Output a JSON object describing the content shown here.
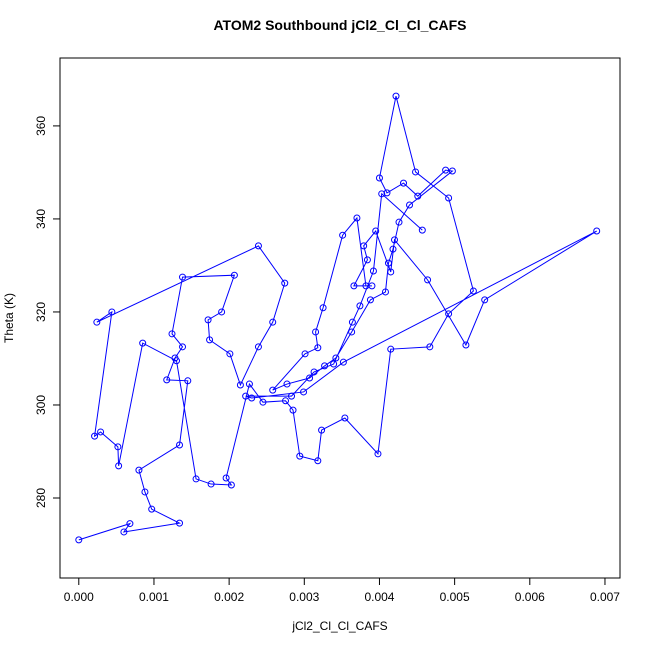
{
  "chart_data": {
    "type": "line",
    "title": "ATOM2 Southbound jCl2_Cl_Cl_CAFS",
    "x_label": "jCl2_Cl_Cl_CAFS",
    "y_label": "Theta (K)",
    "series": [
      {
        "color": "#0000ff",
        "x": [
          0,
          0.00068,
          0.0006,
          0.00134,
          0.00097,
          0.00088,
          0.0008,
          0.00134,
          0.00145,
          0.00117,
          0.00128,
          0.00138,
          0.00124,
          0.00138,
          0.00207,
          0.0019,
          0.00172,
          0.00174,
          0.00201,
          0.00215,
          0.00239,
          0.00258,
          0.00274,
          0.00239,
          0.00024,
          0.00044,
          0.00021,
          0.00029,
          0.00052,
          0.00053,
          0.00085,
          0.0013,
          0.00156,
          0.00176,
          0.00203,
          0.00196,
          0.00227,
          0.00245,
          0.00275,
          0.00285,
          0.00294,
          0.00318,
          0.00323,
          0.00354,
          0.00398,
          0.00415,
          0.00467,
          0.00492,
          0.00525,
          0.00492,
          0.00448,
          0.00422,
          0.004,
          0.0041,
          0.00432,
          0.00451,
          0.00488,
          0.00497,
          0.0044,
          0.00426,
          0.00418,
          0.00412,
          0.00408,
          0.00388,
          0.00363,
          0.00342,
          0.00327,
          0.00307,
          0.00277,
          0.00258,
          0.00301,
          0.00318,
          0.00315,
          0.00325,
          0.00351,
          0.0037,
          0.00382,
          0.0039,
          0.00366,
          0.00384,
          0.00379,
          0.00395,
          0.00415,
          0.0042,
          0.00464,
          0.00515,
          0.0054,
          0.00689,
          0.00352,
          0.00299,
          0.0023,
          0.00222,
          0.00283,
          0.00313,
          0.00339,
          0.00364,
          0.00374,
          0.00392,
          0.00403,
          0.00457
        ],
        "values": [
          271.0,
          274.5,
          272.7,
          274.6,
          277.6,
          281.3,
          286.0,
          291.4,
          305.2,
          305.4,
          310.1,
          312.5,
          315.3,
          327.5,
          327.9,
          320.0,
          318.3,
          314.0,
          311.0,
          304.3,
          312.5,
          317.8,
          326.2,
          334.2,
          317.8,
          320.0,
          293.3,
          294.2,
          291.0,
          286.9,
          313.3,
          309.5,
          284.1,
          283.0,
          282.8,
          284.3,
          304.5,
          300.6,
          300.9,
          298.9,
          289.0,
          288.0,
          294.6,
          297.2,
          289.5,
          312.0,
          312.5,
          319.6,
          324.5,
          344.5,
          350.1,
          366.4,
          348.8,
          345.6,
          347.7,
          344.9,
          350.5,
          350.3,
          343.0,
          339.3,
          333.5,
          330.5,
          324.3,
          322.6,
          315.7,
          310.1,
          308.4,
          305.8,
          304.5,
          303.2,
          311.0,
          312.3,
          315.7,
          320.9,
          336.5,
          340.2,
          325.6,
          325.6,
          325.6,
          331.2,
          334.2,
          337.4,
          328.6,
          335.5,
          326.9,
          312.9,
          322.6,
          337.4,
          309.2,
          302.8,
          301.5,
          301.9,
          301.9,
          307.1,
          308.8,
          317.8,
          321.3,
          328.8,
          345.4,
          337.6
        ]
      }
    ],
    "xlim": [
      -0.00025,
      0.0072
    ],
    "ylim": [
      262.8,
      374.6
    ],
    "xticks": [
      {
        "value": 0,
        "label": "0.000"
      },
      {
        "value": 0.001,
        "label": "0.001"
      },
      {
        "value": 0.002,
        "label": "0.002"
      },
      {
        "value": 0.003,
        "label": "0.003"
      },
      {
        "value": 0.004,
        "label": "0.004"
      },
      {
        "value": 0.005,
        "label": "0.005"
      },
      {
        "value": 0.006,
        "label": "0.006"
      },
      {
        "value": 0.007,
        "label": "0.007"
      }
    ],
    "yticks": [
      280,
      300,
      320,
      340,
      360
    ],
    "grid": false
  }
}
